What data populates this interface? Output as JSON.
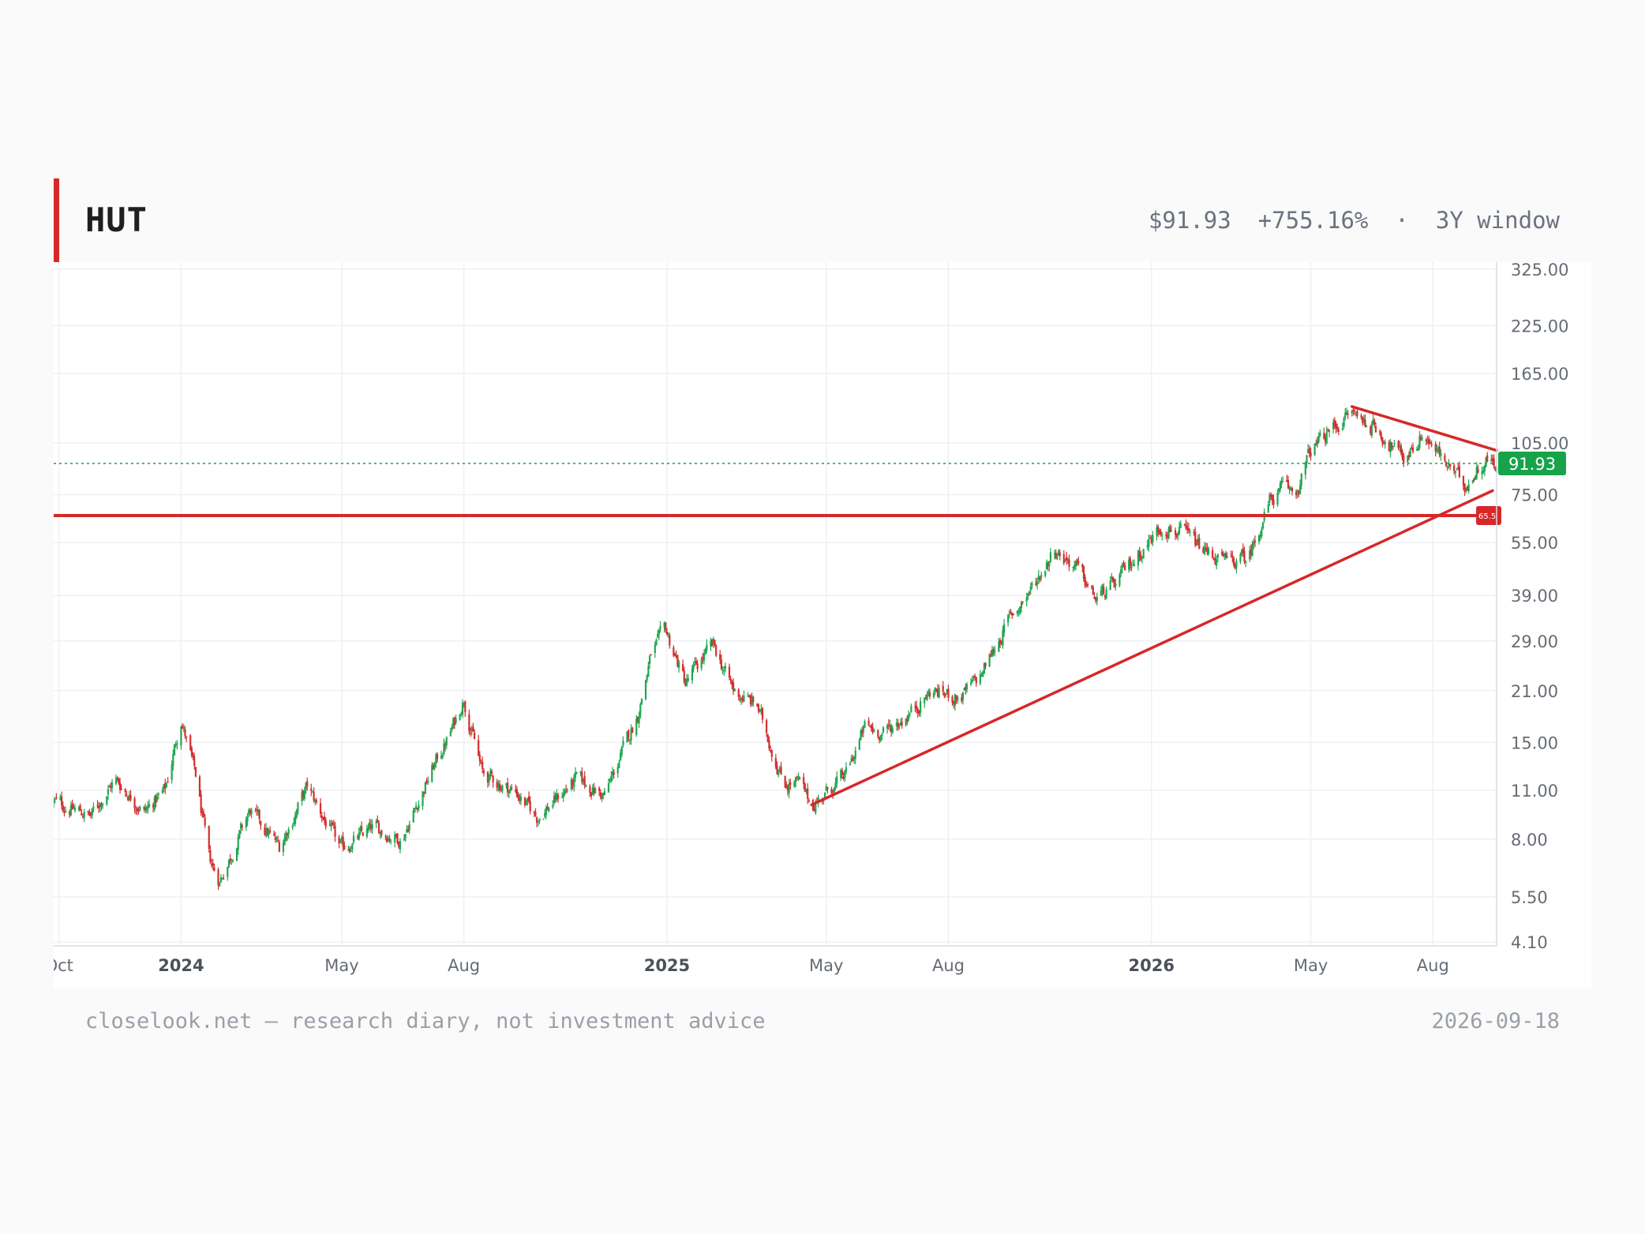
{
  "header": {
    "ticker": "HUT",
    "price": "$91.93",
    "change": "+755.16%",
    "separator": "·",
    "window": "3Y window",
    "accent_color": "#d62828"
  },
  "footer": {
    "site": "closelook.net — research diary, not investment advice",
    "date": "2026-09-18"
  },
  "chart_data": {
    "type": "candlestick",
    "scale": "log",
    "x_range": [
      "2023-09-27",
      "2026-09-18"
    ],
    "y_ticks": [
      "325.00",
      "225.00",
      "165.00",
      "105.00",
      "75.00",
      "55.00",
      "39.00",
      "29.00",
      "21.00",
      "15.00",
      "11.00",
      "8.00",
      "5.50",
      "4.10"
    ],
    "x_ticks": [
      {
        "date": "2023-10-01",
        "label": "Oct",
        "bold": false
      },
      {
        "date": "2024-01-01",
        "label": "2024",
        "bold": true
      },
      {
        "date": "2024-05-01",
        "label": "May",
        "bold": false
      },
      {
        "date": "2024-08-01",
        "label": "Aug",
        "bold": false
      },
      {
        "date": "2025-01-01",
        "label": "2025",
        "bold": true
      },
      {
        "date": "2025-05-01",
        "label": "May",
        "bold": false
      },
      {
        "date": "2025-08-01",
        "label": "Aug",
        "bold": false
      },
      {
        "date": "2026-01-01",
        "label": "2026",
        "bold": true
      },
      {
        "date": "2026-05-01",
        "label": "May",
        "bold": false
      },
      {
        "date": "2026-08-01",
        "label": "Aug",
        "bold": false
      }
    ],
    "anchors": [
      [
        "2023-09-27",
        10.2
      ],
      [
        "2023-10-25",
        9.3
      ],
      [
        "2023-11-12",
        11.8
      ],
      [
        "2023-12-05",
        9.6
      ],
      [
        "2023-12-20",
        11.0
      ],
      [
        "2024-01-01",
        17.5
      ],
      [
        "2024-01-12",
        12.0
      ],
      [
        "2024-01-22",
        7.0
      ],
      [
        "2024-01-30",
        6.1
      ],
      [
        "2024-02-22",
        9.6
      ],
      [
        "2024-03-15",
        7.6
      ],
      [
        "2024-04-05",
        11.2
      ],
      [
        "2024-04-30",
        7.5
      ],
      [
        "2024-05-25",
        8.6
      ],
      [
        "2024-06-15",
        8.0
      ],
      [
        "2024-07-10",
        13.0
      ],
      [
        "2024-07-22",
        16.0
      ],
      [
        "2024-08-01",
        20.0
      ],
      [
        "2024-08-15",
        12.2
      ],
      [
        "2024-09-10",
        10.8
      ],
      [
        "2024-09-25",
        9.2
      ],
      [
        "2024-10-25",
        11.8
      ],
      [
        "2024-11-15",
        10.6
      ],
      [
        "2024-12-10",
        18.0
      ],
      [
        "2024-12-20",
        26.5
      ],
      [
        "2024-12-31",
        31.0
      ],
      [
        "2025-01-15",
        22.0
      ],
      [
        "2025-01-28",
        26.0
      ],
      [
        "2025-02-05",
        28.0
      ],
      [
        "2025-02-20",
        21.0
      ],
      [
        "2025-03-10",
        19.0
      ],
      [
        "2025-03-30",
        11.5
      ],
      [
        "2025-04-10",
        11.5
      ],
      [
        "2025-04-20",
        10.0
      ],
      [
        "2025-05-15",
        12.0
      ],
      [
        "2025-05-30",
        16.5
      ],
      [
        "2025-06-15",
        16.0
      ],
      [
        "2025-07-01",
        18.0
      ],
      [
        "2025-07-20",
        21.0
      ],
      [
        "2025-08-10",
        20.0
      ],
      [
        "2025-08-25",
        23.0
      ],
      [
        "2025-09-15",
        33.0
      ],
      [
        "2025-10-05",
        42.0
      ],
      [
        "2025-10-20",
        53.0
      ],
      [
        "2025-11-05",
        47.0
      ],
      [
        "2025-11-20",
        38.0
      ],
      [
        "2025-12-05",
        42.0
      ],
      [
        "2025-12-20",
        50.0
      ],
      [
        "2026-01-10",
        62.0
      ],
      [
        "2026-01-25",
        58.0
      ],
      [
        "2026-02-10",
        52.0
      ],
      [
        "2026-02-28",
        48.0
      ],
      [
        "2026-03-15",
        50.0
      ],
      [
        "2026-03-31",
        72.0
      ],
      [
        "2026-04-10",
        78.0
      ],
      [
        "2026-04-20",
        76.0
      ],
      [
        "2026-05-01",
        100.0
      ],
      [
        "2026-05-20",
        118.0
      ],
      [
        "2026-06-01",
        128.0
      ],
      [
        "2026-06-20",
        115.0
      ],
      [
        "2026-07-10",
        95.0
      ],
      [
        "2026-07-25",
        112.0
      ],
      [
        "2026-08-10",
        92.0
      ],
      [
        "2026-08-25",
        80.0
      ],
      [
        "2026-09-10",
        95.0
      ],
      [
        "2026-09-18",
        91.93
      ]
    ],
    "last_price": {
      "value": 91.93,
      "label": "91.93",
      "color": "#16a34a"
    },
    "horizontal_level": {
      "value": 65.5,
      "label": "65.5",
      "color": "#d62828"
    },
    "trendlines": [
      {
        "from": [
          "2025-04-20",
          10.0
        ],
        "to": [
          "2026-09-15",
          77.0
        ],
        "color": "#d62828"
      },
      {
        "from": [
          "2026-06-01",
          133.0
        ],
        "to": [
          "2026-09-18",
          100.0
        ],
        "color": "#d62828"
      }
    ],
    "up_color": "#22a652",
    "down_color": "#d32f2f",
    "grid": true
  }
}
